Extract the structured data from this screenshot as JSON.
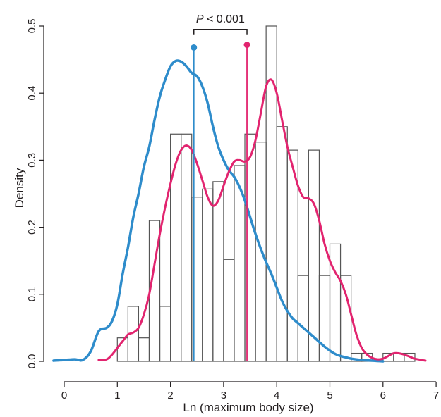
{
  "chart_data": {
    "type": "histogram",
    "xlabel": "Ln (maximum body size)",
    "ylabel": "Density",
    "xlim": [
      -0.2,
      7.0
    ],
    "ylim": [
      0,
      0.5
    ],
    "xticks": [
      "0",
      "1",
      "2",
      "3",
      "4",
      "5",
      "6",
      "7"
    ],
    "yticks": [
      "0.0",
      "0.1",
      "0.2",
      "0.3",
      "0.4",
      "0.5"
    ],
    "bin_width": 0.2,
    "histogram": [
      {
        "x0": 1.0,
        "x1": 1.2,
        "value": 0.035
      },
      {
        "x0": 1.2,
        "x1": 1.4,
        "value": 0.082
      },
      {
        "x0": 1.4,
        "x1": 1.6,
        "value": 0.035
      },
      {
        "x0": 1.6,
        "x1": 1.8,
        "value": 0.21
      },
      {
        "x0": 1.8,
        "x1": 2.0,
        "value": 0.082
      },
      {
        "x0": 2.0,
        "x1": 2.2,
        "value": 0.339
      },
      {
        "x0": 2.2,
        "x1": 2.4,
        "value": 0.339
      },
      {
        "x0": 2.4,
        "x1": 2.6,
        "value": 0.245
      },
      {
        "x0": 2.6,
        "x1": 2.8,
        "value": 0.257
      },
      {
        "x0": 2.8,
        "x1": 3.0,
        "value": 0.268
      },
      {
        "x0": 3.0,
        "x1": 3.2,
        "value": 0.152
      },
      {
        "x0": 3.2,
        "x1": 3.4,
        "value": 0.292
      },
      {
        "x0": 3.4,
        "x1": 3.6,
        "value": 0.339
      },
      {
        "x0": 3.6,
        "x1": 3.8,
        "value": 0.327
      },
      {
        "x0": 3.8,
        "x1": 4.0,
        "value": 0.5
      },
      {
        "x0": 4.0,
        "x1": 4.2,
        "value": 0.35
      },
      {
        "x0": 4.2,
        "x1": 4.4,
        "value": 0.315
      },
      {
        "x0": 4.4,
        "x1": 4.6,
        "value": 0.128
      },
      {
        "x0": 4.6,
        "x1": 4.8,
        "value": 0.315
      },
      {
        "x0": 4.8,
        "x1": 5.0,
        "value": 0.128
      },
      {
        "x0": 5.0,
        "x1": 5.2,
        "value": 0.175
      },
      {
        "x0": 5.2,
        "x1": 5.4,
        "value": 0.128
      },
      {
        "x0": 5.4,
        "x1": 5.6,
        "value": 0.012
      },
      {
        "x0": 5.6,
        "x1": 5.8,
        "value": 0.012
      },
      {
        "x0": 6.0,
        "x1": 6.2,
        "value": 0.012
      },
      {
        "x0": 6.2,
        "x1": 6.4,
        "value": 0.012
      },
      {
        "x0": 6.4,
        "x1": 6.6,
        "value": 0.012
      }
    ],
    "series": [
      {
        "color": "#2e8ccb",
        "type": "density",
        "points": [
          [
            -0.2,
            0.001
          ],
          [
            0.0,
            0.002
          ],
          [
            0.2,
            0.003
          ],
          [
            0.35,
            0.002
          ],
          [
            0.5,
            0.015
          ],
          [
            0.65,
            0.045
          ],
          [
            0.8,
            0.05
          ],
          [
            0.9,
            0.06
          ],
          [
            1.0,
            0.085
          ],
          [
            1.1,
            0.13
          ],
          [
            1.2,
            0.17
          ],
          [
            1.3,
            0.215
          ],
          [
            1.4,
            0.25
          ],
          [
            1.5,
            0.29
          ],
          [
            1.6,
            0.32
          ],
          [
            1.7,
            0.36
          ],
          [
            1.8,
            0.395
          ],
          [
            1.9,
            0.42
          ],
          [
            2.0,
            0.44
          ],
          [
            2.1,
            0.448
          ],
          [
            2.2,
            0.447
          ],
          [
            2.3,
            0.44
          ],
          [
            2.4,
            0.43
          ],
          [
            2.5,
            0.425
          ],
          [
            2.6,
            0.41
          ],
          [
            2.7,
            0.385
          ],
          [
            2.8,
            0.35
          ],
          [
            2.9,
            0.32
          ],
          [
            3.0,
            0.3
          ],
          [
            3.1,
            0.285
          ],
          [
            3.2,
            0.275
          ],
          [
            3.3,
            0.26
          ],
          [
            3.4,
            0.24
          ],
          [
            3.5,
            0.215
          ],
          [
            3.6,
            0.19
          ],
          [
            3.7,
            0.168
          ],
          [
            3.8,
            0.148
          ],
          [
            3.9,
            0.13
          ],
          [
            4.0,
            0.11
          ],
          [
            4.1,
            0.09
          ],
          [
            4.2,
            0.075
          ],
          [
            4.3,
            0.064
          ],
          [
            4.4,
            0.057
          ],
          [
            4.5,
            0.05
          ],
          [
            4.6,
            0.043
          ],
          [
            4.7,
            0.036
          ],
          [
            4.8,
            0.029
          ],
          [
            4.9,
            0.022
          ],
          [
            5.0,
            0.016
          ],
          [
            5.1,
            0.011
          ],
          [
            5.2,
            0.008
          ],
          [
            5.3,
            0.006
          ],
          [
            5.4,
            0.004
          ],
          [
            5.6,
            0.002
          ],
          [
            5.8,
            0.001
          ],
          [
            6.0,
            0.0
          ]
        ]
      },
      {
        "color": "#e2246f",
        "type": "density",
        "points": [
          [
            0.65,
            0.002
          ],
          [
            0.8,
            0.003
          ],
          [
            0.9,
            0.01
          ],
          [
            1.0,
            0.02
          ],
          [
            1.1,
            0.03
          ],
          [
            1.2,
            0.04
          ],
          [
            1.3,
            0.043
          ],
          [
            1.4,
            0.05
          ],
          [
            1.5,
            0.07
          ],
          [
            1.6,
            0.1
          ],
          [
            1.7,
            0.145
          ],
          [
            1.8,
            0.19
          ],
          [
            1.9,
            0.23
          ],
          [
            2.0,
            0.265
          ],
          [
            2.1,
            0.295
          ],
          [
            2.2,
            0.315
          ],
          [
            2.3,
            0.322
          ],
          [
            2.4,
            0.315
          ],
          [
            2.5,
            0.295
          ],
          [
            2.6,
            0.27
          ],
          [
            2.7,
            0.245
          ],
          [
            2.8,
            0.232
          ],
          [
            2.9,
            0.24
          ],
          [
            3.0,
            0.262
          ],
          [
            3.1,
            0.283
          ],
          [
            3.2,
            0.298
          ],
          [
            3.3,
            0.3
          ],
          [
            3.4,
            0.298
          ],
          [
            3.5,
            0.305
          ],
          [
            3.6,
            0.33
          ],
          [
            3.7,
            0.37
          ],
          [
            3.8,
            0.41
          ],
          [
            3.9,
            0.42
          ],
          [
            4.0,
            0.4
          ],
          [
            4.1,
            0.36
          ],
          [
            4.2,
            0.32
          ],
          [
            4.3,
            0.29
          ],
          [
            4.4,
            0.262
          ],
          [
            4.5,
            0.245
          ],
          [
            4.6,
            0.243
          ],
          [
            4.7,
            0.235
          ],
          [
            4.8,
            0.21
          ],
          [
            4.9,
            0.175
          ],
          [
            5.0,
            0.15
          ],
          [
            5.1,
            0.133
          ],
          [
            5.2,
            0.12
          ],
          [
            5.3,
            0.1
          ],
          [
            5.4,
            0.07
          ],
          [
            5.5,
            0.04
          ],
          [
            5.6,
            0.02
          ],
          [
            5.7,
            0.01
          ],
          [
            5.8,
            0.005
          ],
          [
            5.9,
            0.003
          ],
          [
            6.0,
            0.004
          ],
          [
            6.1,
            0.008
          ],
          [
            6.2,
            0.012
          ],
          [
            6.3,
            0.012
          ],
          [
            6.4,
            0.01
          ],
          [
            6.5,
            0.007
          ],
          [
            6.6,
            0.004
          ],
          [
            6.8,
            0.001
          ]
        ]
      }
    ],
    "markers": [
      {
        "color": "#2e8ccb",
        "x": 2.44,
        "y": 0.468
      },
      {
        "color": "#e2246f",
        "x": 3.44,
        "y": 0.472
      }
    ],
    "annotation": {
      "italic_part": "P",
      "rest": " < 0.001",
      "x_from": 2.44,
      "x_to": 3.44,
      "y": 0.495
    }
  }
}
